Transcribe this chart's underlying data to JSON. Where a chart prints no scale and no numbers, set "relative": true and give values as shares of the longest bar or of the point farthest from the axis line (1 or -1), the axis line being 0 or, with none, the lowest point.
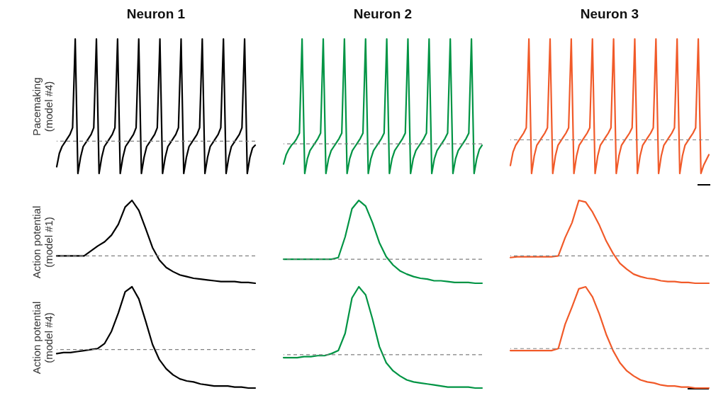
{
  "chart_data": [
    {
      "type": "line",
      "title": "Neuron 1",
      "ylabel": "Pacemaking\n(model #4)",
      "relative": true,
      "color": "#000000",
      "categories": [
        null,
        null,
        null,
        null,
        null,
        null,
        null,
        null,
        null,
        null,
        null,
        null,
        null,
        null,
        null,
        null,
        null,
        null,
        null,
        null,
        null,
        null,
        null,
        null,
        null,
        null,
        null,
        null,
        null,
        null,
        null,
        null,
        null,
        null,
        null,
        null,
        null,
        null,
        null,
        null,
        null,
        null,
        null,
        null,
        null,
        null,
        null,
        null,
        null,
        null,
        null,
        null,
        null,
        null,
        null,
        null,
        null,
        null,
        null,
        null,
        null,
        null,
        null,
        null,
        null,
        null,
        null,
        null,
        null,
        null,
        null,
        null,
        null,
        null,
        null,
        null
      ],
      "values": [
        0.05,
        0.15,
        0.2,
        0.23,
        0.26,
        0.29,
        0.34,
        1,
        0,
        0.12,
        0.2,
        0.23,
        0.26,
        0.29,
        0.34,
        1,
        0,
        0.12,
        0.2,
        0.23,
        0.26,
        0.29,
        0.34,
        1,
        0,
        0.12,
        0.2,
        0.23,
        0.26,
        0.29,
        0.34,
        1,
        0,
        0.12,
        0.2,
        0.23,
        0.26,
        0.29,
        0.34,
        1,
        0,
        0.12,
        0.2,
        0.23,
        0.26,
        0.29,
        0.34,
        1,
        0,
        0.12,
        0.2,
        0.23,
        0.26,
        0.29,
        0.34,
        1,
        0,
        0.12,
        0.2,
        0.23,
        0.26,
        0.29,
        0.34,
        1,
        0,
        0.12,
        0.2,
        0.23,
        0.26,
        0.29,
        0.34,
        1,
        0,
        0.12,
        0.19,
        0.21
      ],
      "ref_lines": [
        {
          "axis": "y",
          "value": 0.24,
          "color": "#808080",
          "line_style": "dashed"
        }
      ]
    },
    {
      "type": "line",
      "title": "Neuron 2",
      "relative": true,
      "color": "#009444",
      "categories": [
        null,
        null,
        null,
        null,
        null,
        null,
        null,
        null,
        null,
        null,
        null,
        null,
        null,
        null,
        null,
        null,
        null,
        null,
        null,
        null,
        null,
        null,
        null,
        null,
        null,
        null,
        null,
        null,
        null,
        null,
        null,
        null,
        null,
        null,
        null,
        null,
        null,
        null,
        null,
        null,
        null,
        null,
        null,
        null,
        null,
        null,
        null,
        null,
        null,
        null,
        null,
        null,
        null,
        null,
        null,
        null,
        null,
        null,
        null,
        null,
        null,
        null,
        null,
        null,
        null,
        null,
        null,
        null,
        null,
        null,
        null,
        null,
        null,
        null,
        null,
        null
      ],
      "values": [
        0.07,
        0.14,
        0.18,
        0.21,
        0.23,
        0.26,
        0.3,
        1,
        0,
        0.11,
        0.17,
        0.2,
        0.23,
        0.26,
        0.3,
        1,
        0,
        0.11,
        0.17,
        0.2,
        0.23,
        0.26,
        0.3,
        1,
        0,
        0.11,
        0.17,
        0.2,
        0.23,
        0.26,
        0.3,
        1,
        0,
        0.11,
        0.17,
        0.2,
        0.23,
        0.26,
        0.3,
        1,
        0,
        0.11,
        0.17,
        0.2,
        0.23,
        0.26,
        0.3,
        1,
        0,
        0.11,
        0.17,
        0.2,
        0.23,
        0.26,
        0.3,
        1,
        0,
        0.11,
        0.17,
        0.2,
        0.23,
        0.26,
        0.3,
        1,
        0,
        0.11,
        0.17,
        0.2,
        0.23,
        0.26,
        0.3,
        1,
        0,
        0.11,
        0.18,
        0.21
      ],
      "ref_lines": [
        {
          "axis": "y",
          "value": 0.22,
          "color": "#808080",
          "line_style": "dashed"
        }
      ]
    },
    {
      "type": "line",
      "title": "Neuron 3",
      "relative": true,
      "color": "#f15a29",
      "categories": [
        null,
        null,
        null,
        null,
        null,
        null,
        null,
        null,
        null,
        null,
        null,
        null,
        null,
        null,
        null,
        null,
        null,
        null,
        null,
        null,
        null,
        null,
        null,
        null,
        null,
        null,
        null,
        null,
        null,
        null,
        null,
        null,
        null,
        null,
        null,
        null,
        null,
        null,
        null,
        null,
        null,
        null,
        null,
        null,
        null,
        null,
        null,
        null,
        null,
        null,
        null,
        null,
        null,
        null,
        null,
        null,
        null,
        null,
        null,
        null,
        null,
        null,
        null,
        null,
        null,
        null,
        null,
        null,
        null,
        null,
        null,
        null,
        null,
        null,
        null,
        null
      ],
      "values": [
        0.06,
        0.16,
        0.21,
        0.24,
        0.27,
        0.3,
        0.34,
        1,
        0,
        0.13,
        0.21,
        0.24,
        0.27,
        0.3,
        0.34,
        1,
        0,
        0.13,
        0.21,
        0.24,
        0.27,
        0.3,
        0.34,
        1,
        0,
        0.13,
        0.21,
        0.24,
        0.27,
        0.3,
        0.34,
        1,
        0,
        0.13,
        0.21,
        0.24,
        0.27,
        0.3,
        0.34,
        1,
        0,
        0.13,
        0.21,
        0.24,
        0.27,
        0.3,
        0.34,
        1,
        0,
        0.13,
        0.21,
        0.24,
        0.27,
        0.3,
        0.34,
        1,
        0,
        0.13,
        0.21,
        0.24,
        0.27,
        0.3,
        0.34,
        1,
        0,
        0.13,
        0.21,
        0.24,
        0.27,
        0.3,
        0.34,
        1,
        0,
        0.06,
        0.1,
        0.14
      ],
      "ref_lines": [
        {
          "axis": "y",
          "value": 0.25,
          "color": "#808080",
          "line_style": "dashed"
        }
      ]
    },
    {
      "type": "line",
      "ylabel": "Action potential\n(model #1)",
      "relative": true,
      "color": "#000000",
      "categories": [
        null,
        null,
        null,
        null,
        null,
        null,
        null,
        null,
        null,
        null,
        null,
        null,
        null,
        null,
        null,
        null,
        null,
        null,
        null,
        null,
        null,
        null,
        null,
        null,
        null,
        null,
        null,
        null,
        null,
        null
      ],
      "values": [
        0.33,
        0.33,
        0.33,
        0.33,
        0.33,
        0.39,
        0.45,
        0.5,
        0.58,
        0.71,
        0.92,
        1,
        0.88,
        0.66,
        0.43,
        0.28,
        0.19,
        0.14,
        0.1,
        0.08,
        0.06,
        0.05,
        0.04,
        0.03,
        0.02,
        0.02,
        0.02,
        0.01,
        0.01,
        0
      ],
      "ref_lines": [
        {
          "axis": "y",
          "value": 0.33,
          "color": "#808080",
          "line_style": "dashed"
        }
      ]
    },
    {
      "type": "line",
      "relative": true,
      "color": "#009444",
      "categories": [
        null,
        null,
        null,
        null,
        null,
        null,
        null,
        null,
        null,
        null,
        null,
        null,
        null,
        null,
        null,
        null,
        null,
        null,
        null,
        null,
        null,
        null,
        null,
        null,
        null,
        null,
        null,
        null,
        null,
        null
      ],
      "values": [
        0.29,
        0.29,
        0.29,
        0.29,
        0.29,
        0.29,
        0.29,
        0.29,
        0.31,
        0.56,
        0.9,
        1,
        0.93,
        0.73,
        0.49,
        0.32,
        0.22,
        0.15,
        0.11,
        0.08,
        0.06,
        0.05,
        0.03,
        0.03,
        0.02,
        0.01,
        0.01,
        0.01,
        0,
        0
      ],
      "ref_lines": [
        {
          "axis": "y",
          "value": 0.29,
          "color": "#808080",
          "line_style": "dashed"
        }
      ]
    },
    {
      "type": "line",
      "relative": true,
      "color": "#f15a29",
      "categories": [
        null,
        null,
        null,
        null,
        null,
        null,
        null,
        null,
        null,
        null,
        null,
        null,
        null,
        null,
        null,
        null,
        null,
        null,
        null,
        null,
        null,
        null,
        null,
        null,
        null,
        null,
        null,
        null,
        null,
        null
      ],
      "values": [
        0.31,
        0.32,
        0.32,
        0.32,
        0.32,
        0.32,
        0.32,
        0.33,
        0.55,
        0.73,
        1,
        0.98,
        0.86,
        0.7,
        0.51,
        0.36,
        0.24,
        0.17,
        0.11,
        0.08,
        0.06,
        0.05,
        0.03,
        0.02,
        0.02,
        0.01,
        0.01,
        0,
        0,
        0
      ],
      "ref_lines": [
        {
          "axis": "y",
          "value": 0.33,
          "color": "#808080",
          "line_style": "dashed"
        }
      ]
    },
    {
      "type": "line",
      "ylabel": "Action potential\n(model #4)",
      "relative": true,
      "color": "#000000",
      "categories": [
        null,
        null,
        null,
        null,
        null,
        null,
        null,
        null,
        null,
        null,
        null,
        null,
        null,
        null,
        null,
        null,
        null,
        null,
        null,
        null,
        null,
        null,
        null,
        null,
        null,
        null,
        null,
        null,
        null,
        null
      ],
      "values": [
        0.34,
        0.35,
        0.35,
        0.36,
        0.37,
        0.38,
        0.39,
        0.44,
        0.56,
        0.74,
        0.95,
        1,
        0.88,
        0.66,
        0.43,
        0.28,
        0.19,
        0.13,
        0.09,
        0.07,
        0.06,
        0.04,
        0.03,
        0.02,
        0.02,
        0.02,
        0.01,
        0.01,
        0,
        0
      ],
      "ref_lines": [
        {
          "axis": "y",
          "value": 0.38,
          "color": "#808080",
          "line_style": "dashed"
        }
      ]
    },
    {
      "type": "line",
      "relative": true,
      "color": "#009444",
      "categories": [
        null,
        null,
        null,
        null,
        null,
        null,
        null,
        null,
        null,
        null,
        null,
        null,
        null,
        null,
        null,
        null,
        null,
        null,
        null,
        null,
        null,
        null,
        null,
        null,
        null,
        null,
        null,
        null,
        null,
        null
      ],
      "values": [
        0.3,
        0.3,
        0.3,
        0.31,
        0.31,
        0.32,
        0.32,
        0.34,
        0.37,
        0.54,
        0.89,
        1,
        0.92,
        0.68,
        0.41,
        0.25,
        0.17,
        0.12,
        0.08,
        0.06,
        0.05,
        0.04,
        0.03,
        0.02,
        0.01,
        0.01,
        0.01,
        0.01,
        0,
        0
      ],
      "ref_lines": [
        {
          "axis": "y",
          "value": 0.33,
          "color": "#808080",
          "line_style": "dashed"
        }
      ]
    },
    {
      "type": "line",
      "relative": true,
      "color": "#f15a29",
      "categories": [
        null,
        null,
        null,
        null,
        null,
        null,
        null,
        null,
        null,
        null,
        null,
        null,
        null,
        null,
        null,
        null,
        null,
        null,
        null,
        null,
        null,
        null,
        null,
        null,
        null,
        null,
        null,
        null,
        null,
        null
      ],
      "values": [
        0.37,
        0.37,
        0.37,
        0.37,
        0.37,
        0.37,
        0.37,
        0.39,
        0.63,
        0.8,
        0.98,
        1,
        0.9,
        0.73,
        0.53,
        0.37,
        0.25,
        0.17,
        0.12,
        0.08,
        0.06,
        0.05,
        0.03,
        0.02,
        0.02,
        0.01,
        0.01,
        0,
        0,
        0
      ],
      "ref_lines": [
        {
          "axis": "y",
          "value": 0.39,
          "color": "#808080",
          "line_style": "dashed"
        }
      ]
    }
  ]
}
